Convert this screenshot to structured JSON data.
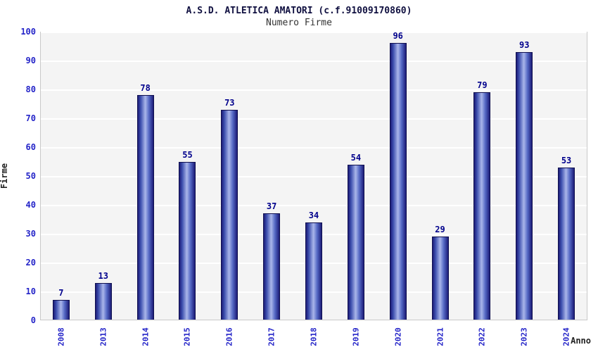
{
  "chart_data": {
    "type": "bar",
    "title": "A.S.D. ATLETICA AMATORI (c.f.91009170860)",
    "subtitle": "Numero Firme",
    "xlabel": "Anno",
    "ylabel": "Firme",
    "categories": [
      "2008",
      "2013",
      "2014",
      "2015",
      "2016",
      "2017",
      "2018",
      "2019",
      "2020",
      "2021",
      "2022",
      "2023",
      "2024"
    ],
    "values": [
      7,
      13,
      78,
      55,
      73,
      37,
      34,
      54,
      96,
      29,
      79,
      93,
      53
    ],
    "ylim": [
      0,
      100
    ],
    "ytick_step": 10,
    "grid": true,
    "legend": "none",
    "colors": {
      "bar_dark": "#1c1c78",
      "bar_light": "#aab6ea",
      "value_label": "#00008c",
      "tick_label": "#2424c8",
      "plot_background": "#f4f4f4",
      "grid_line": "#ffffff"
    }
  }
}
